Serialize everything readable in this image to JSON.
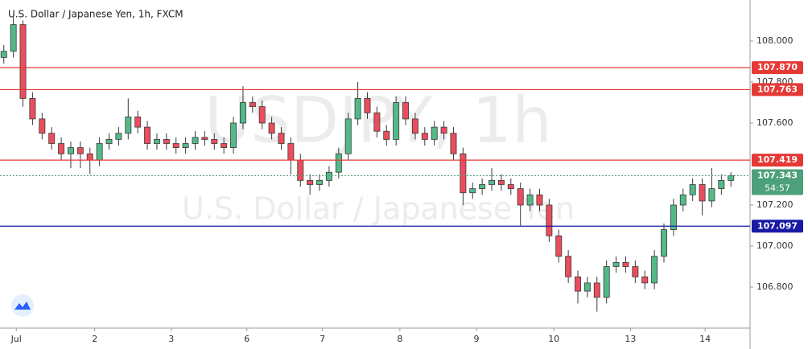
{
  "chart_data": {
    "type": "candlestick",
    "title": "U.S. Dollar / Japanese Yen, 1h, FXCM",
    "watermark": [
      "USDJPY, 1h",
      "U.S. Dollar / Japanese Yen"
    ],
    "up_color": "#53b987",
    "down_color": "#eb4d5c",
    "x": [
      0,
      1,
      2,
      3,
      4,
      5,
      6,
      7,
      8,
      9,
      10,
      11,
      12,
      13,
      14,
      15,
      16,
      17,
      18,
      19,
      20,
      21,
      22,
      23,
      24,
      25,
      26,
      27,
      28,
      29,
      30,
      31,
      32,
      33,
      34,
      35,
      36,
      37,
      38,
      39,
      40,
      41,
      42,
      43,
      44,
      45,
      46,
      47,
      48,
      49,
      50,
      51,
      52,
      53,
      54,
      55,
      56,
      57,
      58,
      59,
      60,
      61,
      62,
      63,
      64,
      65,
      66,
      67,
      68,
      69,
      70,
      71,
      72,
      73,
      74,
      75,
      76
    ],
    "open": [
      107.92,
      107.95,
      108.08,
      107.72,
      107.62,
      107.55,
      107.5,
      107.45,
      107.48,
      107.45,
      107.42,
      107.5,
      107.52,
      107.55,
      107.63,
      107.58,
      107.5,
      107.52,
      107.5,
      107.48,
      107.5,
      107.53,
      107.52,
      107.5,
      107.48,
      107.6,
      107.7,
      107.68,
      107.6,
      107.55,
      107.5,
      107.42,
      107.32,
      107.3,
      107.32,
      107.36,
      107.45,
      107.62,
      107.72,
      107.65,
      107.56,
      107.52,
      107.7,
      107.62,
      107.55,
      107.52,
      107.58,
      107.55,
      107.45,
      107.26,
      107.28,
      107.3,
      107.32,
      107.3,
      107.28,
      107.2,
      107.25,
      107.2,
      107.05,
      106.95,
      106.85,
      106.78,
      106.82,
      106.75,
      106.9,
      106.92,
      106.9,
      106.85,
      106.82,
      106.95,
      107.08,
      107.2,
      107.25,
      107.3,
      107.22,
      107.28,
      107.32
    ],
    "high": [
      107.98,
      108.12,
      108.1,
      107.75,
      107.65,
      107.58,
      107.53,
      107.51,
      107.51,
      107.48,
      107.53,
      107.55,
      107.58,
      107.72,
      107.66,
      107.61,
      107.55,
      107.55,
      107.53,
      107.53,
      107.56,
      107.56,
      107.55,
      107.53,
      107.63,
      107.78,
      107.73,
      107.71,
      107.63,
      107.58,
      107.53,
      107.45,
      107.35,
      107.35,
      107.39,
      107.48,
      107.65,
      107.8,
      107.75,
      107.68,
      107.59,
      107.73,
      107.73,
      107.65,
      107.58,
      107.61,
      107.61,
      107.58,
      107.48,
      107.31,
      107.33,
      107.38,
      107.35,
      107.33,
      107.31,
      107.28,
      107.28,
      107.23,
      107.08,
      106.98,
      106.88,
      106.85,
      106.85,
      106.93,
      106.95,
      106.95,
      106.93,
      106.88,
      106.98,
      107.11,
      107.23,
      107.28,
      107.33,
      107.33,
      107.38,
      107.35,
      107.36
    ],
    "low": [
      107.89,
      107.92,
      107.68,
      107.59,
      107.52,
      107.47,
      107.42,
      107.38,
      107.38,
      107.35,
      107.39,
      107.47,
      107.49,
      107.52,
      107.55,
      107.47,
      107.47,
      107.47,
      107.45,
      107.45,
      107.47,
      107.49,
      107.47,
      107.45,
      107.45,
      107.57,
      107.65,
      107.57,
      107.52,
      107.47,
      107.35,
      107.29,
      107.25,
      107.27,
      107.29,
      107.33,
      107.42,
      107.59,
      107.62,
      107.53,
      107.49,
      107.49,
      107.59,
      107.52,
      107.49,
      107.49,
      107.52,
      107.42,
      107.2,
      107.23,
      107.25,
      107.27,
      107.27,
      107.25,
      107.1,
      107.17,
      107.17,
      107.02,
      106.92,
      106.82,
      106.72,
      106.75,
      106.68,
      106.72,
      106.87,
      106.87,
      106.82,
      106.79,
      106.79,
      106.92,
      107.05,
      107.17,
      107.22,
      107.15,
      107.19,
      107.25,
      107.29
    ],
    "close": [
      107.95,
      108.08,
      107.72,
      107.62,
      107.55,
      107.5,
      107.45,
      107.48,
      107.45,
      107.42,
      107.5,
      107.52,
      107.55,
      107.63,
      107.58,
      107.5,
      107.52,
      107.5,
      107.48,
      107.5,
      107.53,
      107.52,
      107.5,
      107.48,
      107.6,
      107.7,
      107.68,
      107.6,
      107.55,
      107.5,
      107.42,
      107.32,
      107.3,
      107.32,
      107.36,
      107.45,
      107.62,
      107.72,
      107.65,
      107.56,
      107.52,
      107.7,
      107.62,
      107.55,
      107.52,
      107.58,
      107.55,
      107.45,
      107.26,
      107.28,
      107.3,
      107.32,
      107.3,
      107.28,
      107.2,
      107.25,
      107.2,
      107.05,
      106.95,
      106.85,
      106.78,
      106.82,
      106.75,
      106.9,
      106.92,
      106.9,
      106.85,
      106.82,
      106.95,
      107.08,
      107.2,
      107.25,
      107.3,
      107.22,
      107.28,
      107.32,
      107.343
    ],
    "xlim": [
      -0.4,
      78
    ],
    "xticks": [
      {
        "value": 1.3,
        "label": "Jul"
      },
      {
        "value": 9.5,
        "label": "2"
      },
      {
        "value": 17.5,
        "label": "3"
      },
      {
        "value": 25.4,
        "label": "6"
      },
      {
        "value": 33.3,
        "label": "7"
      },
      {
        "value": 41.4,
        "label": "8"
      },
      {
        "value": 49.4,
        "label": "9"
      },
      {
        "value": 57.5,
        "label": "10"
      },
      {
        "value": 65.5,
        "label": "13"
      },
      {
        "value": 73.3,
        "label": "14"
      }
    ],
    "ylim": [
      106.6,
      108.2
    ],
    "yticks": [
      {
        "value": 106.8,
        "label": "106.800"
      },
      {
        "value": 107.0,
        "label": "107.000"
      },
      {
        "value": 107.2,
        "label": "107.200"
      },
      {
        "value": 107.6,
        "label": "107.600"
      },
      {
        "value": 107.8,
        "label": "107.800"
      },
      {
        "value": 108.0,
        "label": "108.000"
      }
    ],
    "levels": [
      {
        "value": 107.87,
        "label": "107.870",
        "color": "#e53935"
      },
      {
        "value": 107.763,
        "label": "107.763",
        "color": "#e53935"
      },
      {
        "value": 107.419,
        "label": "107.419",
        "color": "#e53935"
      },
      {
        "value": 107.097,
        "label": "107.097",
        "color": "#1a1aa6"
      }
    ],
    "last_price": {
      "value": 107.343,
      "label": "107.343",
      "countdown": "54:57",
      "color": "#4ca07a"
    }
  }
}
